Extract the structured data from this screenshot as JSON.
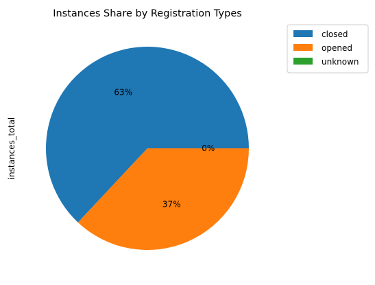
{
  "chart_data": {
    "type": "pie",
    "title": "Instances Share by Registration Types",
    "ylabel": "instances_total",
    "xlabel": "",
    "legend_position": "outside-top-right",
    "start_angle_deg": 0,
    "direction": "counterclockwise",
    "slices": [
      {
        "label": "closed",
        "value": 63,
        "pct_label": "63%",
        "color": "#1f77b4"
      },
      {
        "label": "opened",
        "value": 37,
        "pct_label": "37%",
        "color": "#ff7f0e"
      },
      {
        "label": "unknown",
        "value": 0,
        "pct_label": "0%",
        "color": "#2ca02c"
      }
    ]
  }
}
